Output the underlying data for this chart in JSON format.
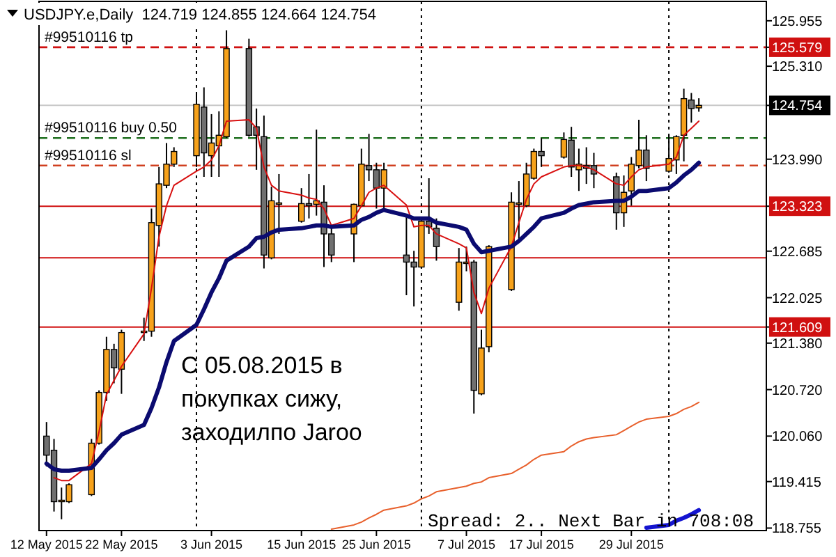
{
  "chart_data": {
    "type": "candlestick",
    "title": "USDJPY.e,Daily  124.719 124.855 124.664 124.754",
    "x": [
      "2015-05-12",
      "2015-05-13",
      "2015-05-14",
      "2015-05-15",
      "2015-05-18",
      "2015-05-19",
      "2015-05-20",
      "2015-05-21",
      "2015-05-22",
      "2015-05-25",
      "2015-05-26",
      "2015-05-27",
      "2015-05-28",
      "2015-05-29",
      "2015-06-01",
      "2015-06-02",
      "2015-06-03",
      "2015-06-04",
      "2015-06-05",
      "2015-06-08",
      "2015-06-09",
      "2015-06-10",
      "2015-06-11",
      "2015-06-12",
      "2015-06-15",
      "2015-06-16",
      "2015-06-17",
      "2015-06-18",
      "2015-06-19",
      "2015-06-22",
      "2015-06-23",
      "2015-06-24",
      "2015-06-25",
      "2015-06-26",
      "2015-06-29",
      "2015-06-30",
      "2015-07-01",
      "2015-07-02",
      "2015-07-03",
      "2015-07-06",
      "2015-07-07",
      "2015-07-08",
      "2015-07-09",
      "2015-07-10",
      "2015-07-13",
      "2015-07-14",
      "2015-07-15",
      "2015-07-16",
      "2015-07-17",
      "2015-07-20",
      "2015-07-21",
      "2015-07-22",
      "2015-07-23",
      "2015-07-24",
      "2015-07-27",
      "2015-07-28",
      "2015-07-29",
      "2015-07-30",
      "2015-07-31",
      "2015-08-03",
      "2015-08-04",
      "2015-08-05",
      "2015-08-06",
      "2015-08-07"
    ],
    "ohlc": [
      [
        120.06,
        120.26,
        119.63,
        119.79
      ],
      [
        119.86,
        120.02,
        118.99,
        119.13
      ],
      [
        119.13,
        119.33,
        118.88,
        119.15
      ],
      [
        119.13,
        119.39,
        119.11,
        119.37
      ],
      [
        119.23,
        120.02,
        119.21,
        119.96
      ],
      [
        119.96,
        120.71,
        119.94,
        120.68
      ],
      [
        120.68,
        121.47,
        120.56,
        121.29
      ],
      [
        121.29,
        121.37,
        120.81,
        121.03
      ],
      [
        121.01,
        121.57,
        120.66,
        121.53
      ],
      [
        121.53,
        121.74,
        121.41,
        121.55
      ],
      [
        121.55,
        123.29,
        121.47,
        123.09
      ],
      [
        123.05,
        123.88,
        122.75,
        123.64
      ],
      [
        123.62,
        124.22,
        123.58,
        123.92
      ],
      [
        123.92,
        124.16,
        123.88,
        124.1
      ],
      [
        124.04,
        124.91,
        123.88,
        124.77
      ],
      [
        124.73,
        125.01,
        123.74,
        124.08
      ],
      [
        124.04,
        124.63,
        123.74,
        124.22
      ],
      [
        124.18,
        124.67,
        123.74,
        124.33
      ],
      [
        124.31,
        125.82,
        124.29,
        125.56
      ],
      [
        125.56,
        125.7,
        124.31,
        124.33
      ],
      [
        124.45,
        124.71,
        123.84,
        124.33
      ],
      [
        124.31,
        124.61,
        122.44,
        122.63
      ],
      [
        122.59,
        123.6,
        122.57,
        123.4
      ],
      [
        123.36,
        123.78,
        122.93,
        123.37
      ],
      [
        123.11,
        123.58,
        123.09,
        123.36
      ],
      [
        123.36,
        123.78,
        123.15,
        123.33
      ],
      [
        123.35,
        124.41,
        123.19,
        123.4
      ],
      [
        123.38,
        123.62,
        122.46,
        122.93
      ],
      [
        122.93,
        123.05,
        122.53,
        122.63
      ],
      [
        122.93,
        123.36,
        122.53,
        123.35
      ],
      [
        123.33,
        124.14,
        123.31,
        123.92
      ],
      [
        123.9,
        124.35,
        123.68,
        123.84
      ],
      [
        123.84,
        123.94,
        123.29,
        123.58
      ],
      [
        123.58,
        123.94,
        123.29,
        123.84
      ],
      [
        122.63,
        123.19,
        122.06,
        122.53
      ],
      [
        122.53,
        122.69,
        121.9,
        122.46
      ],
      [
        122.46,
        123.15,
        122.44,
        123.11
      ],
      [
        123.11,
        123.72,
        122.93,
        123.03
      ],
      [
        123.01,
        123.15,
        122.55,
        122.75
      ],
      [
        121.96,
        122.73,
        121.84,
        122.53
      ],
      [
        122.53,
        122.75,
        122.4,
        122.53
      ],
      [
        122.53,
        122.56,
        120.38,
        120.71
      ],
      [
        120.66,
        121.57,
        120.64,
        121.31
      ],
      [
        121.33,
        122.77,
        121.25,
        122.75
      ],
      [
        122.14,
        123.52,
        122.12,
        123.38
      ],
      [
        123.36,
        123.68,
        122.85,
        123.37
      ],
      [
        123.33,
        123.94,
        123.31,
        123.78
      ],
      [
        123.72,
        124.14,
        123.7,
        124.1
      ],
      [
        124.1,
        124.29,
        123.88,
        124.04
      ],
      [
        124.02,
        124.37,
        124.0,
        124.27
      ],
      [
        124.26,
        124.45,
        123.74,
        123.88
      ],
      [
        123.84,
        124.14,
        123.54,
        123.92
      ],
      [
        123.9,
        124.16,
        123.64,
        123.86
      ],
      [
        123.9,
        124.08,
        123.58,
        123.78
      ],
      [
        123.74,
        123.8,
        122.99,
        123.23
      ],
      [
        123.23,
        123.76,
        123.03,
        123.52
      ],
      [
        123.54,
        124.02,
        123.33,
        123.92
      ],
      [
        123.9,
        124.55,
        123.86,
        124.12
      ],
      [
        124.12,
        124.33,
        123.68,
        123.86
      ],
      [
        123.82,
        124.33,
        123.8,
        124.0
      ],
      [
        123.98,
        124.33,
        123.78,
        124.31
      ],
      [
        124.33,
        124.99,
        123.96,
        124.85
      ],
      [
        124.83,
        124.93,
        124.51,
        124.71
      ],
      [
        124.719,
        124.855,
        124.664,
        124.754
      ]
    ],
    "colors": [
      "#707070",
      "#707070",
      "#f7a21b",
      "#f7a21b",
      "#f7a21b",
      "#f7a21b",
      "#f7a21b",
      "#707070",
      "#f7a21b",
      "#f7a21b",
      "#f7a21b",
      "#f7a21b",
      "#f7a21b",
      "#f7a21b",
      "#f7a21b",
      "#707070",
      "#f7a21b",
      "#f7a21b",
      "#f7a21b",
      "#707070",
      "#707070",
      "#707070",
      "#f7a21b",
      "#f7a21b",
      "#f7a21b",
      "#707070",
      "#f7a21b",
      "#707070",
      "#707070",
      "#f7a21b",
      "#f7a21b",
      "#707070",
      "#707070",
      "#f7a21b",
      "#707070",
      "#707070",
      "#f7a21b",
      "#707070",
      "#707070",
      "#f7a21b",
      "#f7a21b",
      "#707070",
      "#f7a21b",
      "#f7a21b",
      "#f7a21b",
      "#f7a21b",
      "#f7a21b",
      "#f7a21b",
      "#707070",
      "#f7a21b",
      "#707070",
      "#f7a21b",
      "#707070",
      "#707070",
      "#707070",
      "#f7a21b",
      "#f7a21b",
      "#f7a21b",
      "#707070",
      "#f7a21b",
      "#f7a21b",
      "#f7a21b",
      "#707070",
      "#f7a21b"
    ],
    "series": [
      {
        "type": "line",
        "color": "#d81010",
        "values": [
          null,
          119.47,
          119.43,
          119.43,
          119.67,
          120.12,
          120.65,
          120.85,
          121.05,
          121.51,
          122.16,
          122.89,
          123.33,
          123.62,
          123.82,
          123.88,
          123.98,
          124.18,
          124.53,
          124.55,
          124.43,
          123.88,
          123.62,
          123.54,
          123.48,
          123.44,
          123.42,
          123.29,
          123.05,
          123.15,
          123.33,
          123.52,
          123.58,
          123.62,
          123.34,
          123.03,
          123.05,
          123.05,
          122.93,
          122.79,
          122.73,
          122.1,
          121.8,
          122.16,
          122.75,
          123.09,
          123.42,
          123.64,
          123.74,
          123.88,
          123.9,
          123.9,
          123.88,
          123.84,
          123.64,
          123.62,
          123.74,
          123.84,
          123.88,
          123.92,
          124.02,
          124.33,
          124.43,
          124.53
        ]
      },
      {
        "type": "line",
        "color": "#0b0b70",
        "values": [
          119.67,
          119.59,
          119.57,
          119.57,
          119.61,
          119.73,
          119.86,
          119.96,
          120.08,
          120.22,
          120.46,
          120.75,
          121.11,
          121.41,
          121.64,
          121.86,
          122.1,
          122.3,
          122.55,
          122.75,
          122.87,
          122.89,
          122.95,
          122.99,
          123.01,
          123.03,
          123.05,
          123.05,
          123.03,
          123.05,
          123.13,
          123.17,
          123.23,
          123.27,
          123.19,
          123.15,
          123.15,
          123.15,
          123.09,
          123.03,
          122.99,
          122.79,
          122.67,
          122.69,
          122.75,
          122.83,
          122.93,
          123.03,
          123.15,
          123.23,
          123.29,
          123.34,
          123.36,
          123.38,
          123.4,
          123.4,
          123.46,
          123.54,
          123.54,
          123.58,
          123.66,
          123.76,
          123.84,
          123.94
        ]
      },
      {
        "type": "line",
        "color": "#e8602c",
        "values": [
          null,
          null,
          null,
          null,
          null,
          null,
          null,
          null,
          null,
          null,
          null,
          null,
          null,
          null,
          null,
          null,
          null,
          null,
          null,
          null,
          null,
          null,
          null,
          null,
          null,
          null,
          null,
          null,
          118.74,
          118.8,
          118.84,
          118.9,
          118.95,
          119.01,
          119.07,
          119.11,
          119.17,
          119.21,
          119.27,
          119.33,
          119.35,
          119.39,
          119.41,
          119.47,
          119.53,
          119.59,
          119.65,
          119.73,
          119.79,
          119.84,
          119.92,
          119.98,
          120.02,
          120.04,
          120.08,
          120.14,
          120.2,
          120.26,
          120.3,
          120.34,
          120.38,
          120.44,
          120.48,
          120.54
        ]
      },
      {
        "type": "line",
        "color": "#1414d0",
        "values": [
          null,
          null,
          null,
          null,
          null,
          null,
          null,
          null,
          null,
          null,
          null,
          null,
          null,
          null,
          null,
          null,
          null,
          null,
          null,
          null,
          null,
          null,
          null,
          null,
          null,
          null,
          null,
          null,
          null,
          null,
          null,
          null,
          null,
          null,
          null,
          null,
          null,
          null,
          null,
          null,
          null,
          null,
          null,
          null,
          null,
          null,
          null,
          null,
          null,
          null,
          null,
          null,
          null,
          null,
          null,
          null,
          null,
          null,
          118.76,
          118.8,
          118.86,
          118.9,
          118.95,
          119.01
        ]
      }
    ],
    "xlim": [
      "2015-05-11",
      "2015-08-16"
    ],
    "xticks": [
      {
        "value": "2015-05-12",
        "label": "12 May 2015"
      },
      {
        "value": "2015-05-22",
        "label": "22 May 2015"
      },
      {
        "value": "2015-06-03",
        "label": "3 Jun 2015"
      },
      {
        "value": "2015-06-15",
        "label": "15 Jun 2015"
      },
      {
        "value": "2015-06-25",
        "label": "25 Jun 2015"
      },
      {
        "value": "2015-07-07",
        "label": "7 Jul 2015"
      },
      {
        "value": "2015-07-17",
        "label": "17 Jul 2015"
      },
      {
        "value": "2015-07-29",
        "label": "29 Jul 2015"
      }
    ],
    "ylim": [
      118.72,
      126.23
    ],
    "yticks": [
      125.955,
      125.579,
      {
        "value": 125.31,
        "label": "125.310"
      },
      124.754,
      {
        "value": 123.99,
        "label": "123.990"
      },
      123.323,
      122.685,
      122.025,
      121.609,
      {
        "value": 121.38,
        "label": "121.380"
      },
      {
        "value": 120.72,
        "label": "120.720"
      },
      {
        "value": 120.06,
        "label": "120.060"
      },
      119.415,
      118.755
    ],
    "ref_lines": [
      {
        "axis": "y",
        "value": 125.579,
        "label": "#99510116 tp",
        "color": "#d01010",
        "line_style": "dashed"
      },
      {
        "axis": "y",
        "value": 124.754,
        "label": null,
        "color": "#c8c8c8",
        "line_style": "solid"
      },
      {
        "axis": "y",
        "value": 124.29,
        "label": "#99510116 buy 0.50",
        "color": "#207020",
        "line_style": "dashed"
      },
      {
        "axis": "y",
        "value": 123.9,
        "label": "#99510116 sl",
        "color": "#d04020",
        "line_style": "dashed"
      },
      {
        "axis": "y",
        "value": 123.323,
        "label": null,
        "color": "#d01010",
        "line_style": "solid"
      },
      {
        "axis": "y",
        "value": 122.59,
        "label": null,
        "color": "#d01010",
        "line_style": "solid"
      },
      {
        "axis": "y",
        "value": 121.609,
        "label": null,
        "color": "#d01010",
        "line_style": "solid"
      },
      {
        "axis": "x",
        "value": "2015-06-01",
        "label": null,
        "color": "#000000",
        "line_style": "dotted"
      },
      {
        "axis": "x",
        "value": "2015-07-01",
        "label": null,
        "color": "#000000",
        "line_style": "dotted"
      },
      {
        "axis": "x",
        "value": "2015-08-03",
        "label": null,
        "color": "#000000",
        "line_style": "dotted"
      }
    ],
    "annotations": [
      "С 05.08.2015 в\nпокупках сижу,\nзаходилпо Jaroo",
      "Spread: 2.. Next Bar in 708:08"
    ]
  }
}
